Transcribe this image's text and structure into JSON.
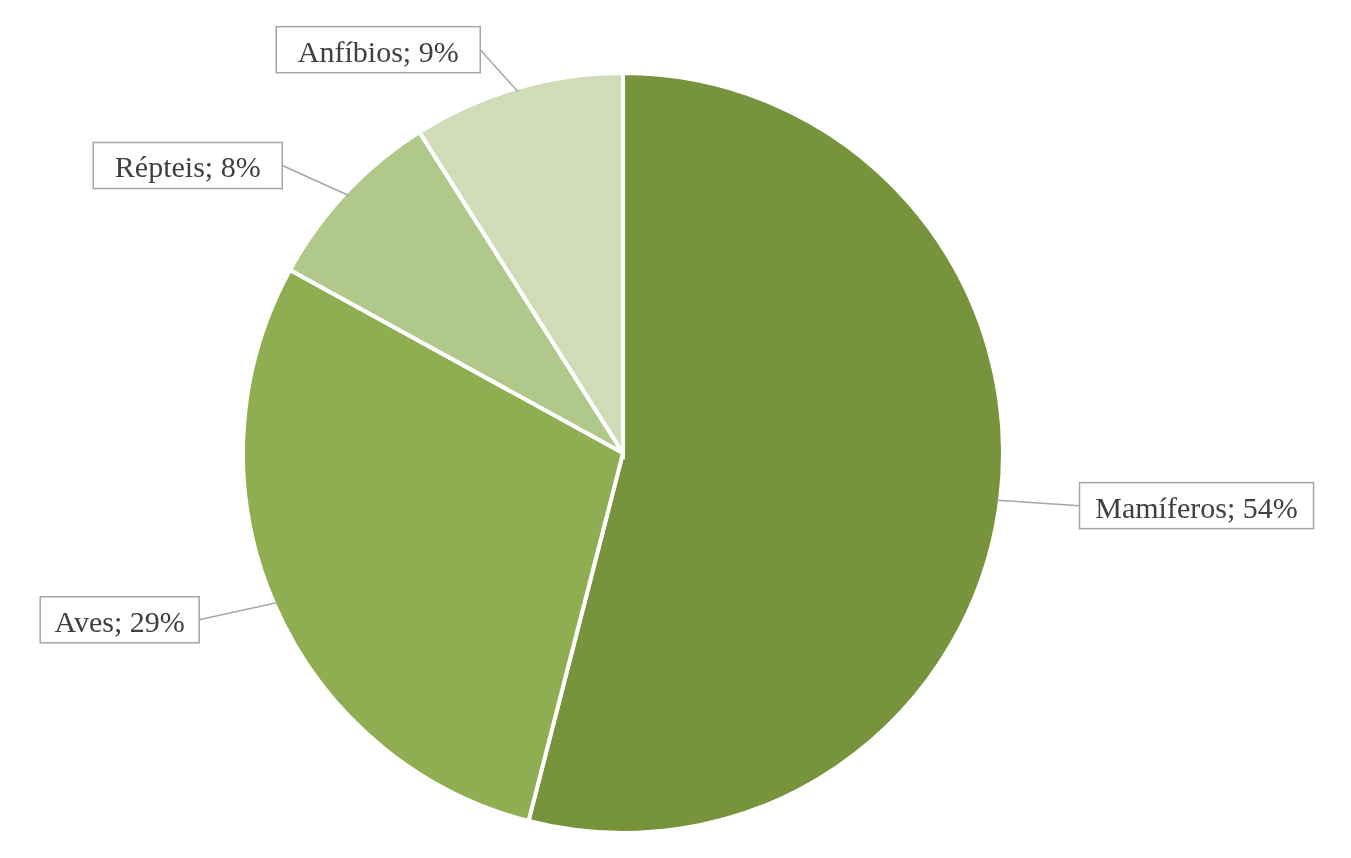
{
  "chart_data": {
    "type": "pie",
    "categories": [
      "Mamíferos",
      "Aves",
      "Répteis",
      "Anfíbios"
    ],
    "values": [
      54,
      29,
      8,
      9
    ],
    "value_labels": [
      "54%",
      "29%",
      "8%",
      "9%"
    ],
    "colors": [
      "#77933c",
      "#8fae52",
      "#b0c88a",
      "#d0dcb8"
    ]
  }
}
